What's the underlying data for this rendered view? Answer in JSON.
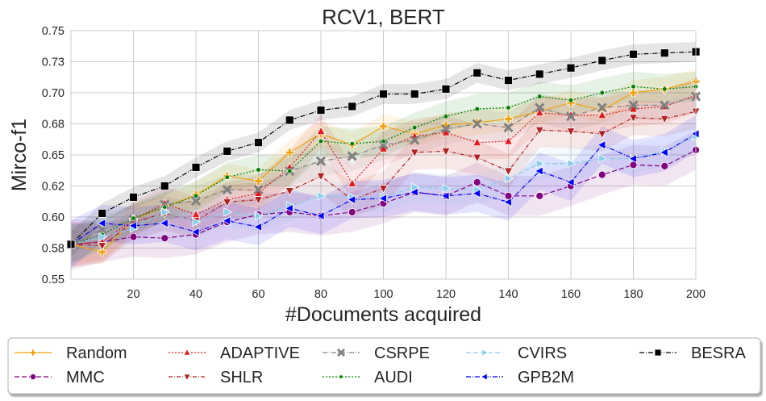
{
  "chart_data": {
    "type": "line",
    "title": "RCV1, BERT",
    "xlabel": "#Documents acquired",
    "ylabel": "Mirco-f1",
    "xlim": [
      0,
      200
    ],
    "ylim": [
      0.55,
      0.75
    ],
    "xticks": [
      20,
      40,
      60,
      80,
      100,
      120,
      140,
      160,
      180,
      200
    ],
    "yticks": [
      0.55,
      0.575,
      0.6,
      0.625,
      0.65,
      0.675,
      0.7,
      0.725,
      0.75
    ],
    "ytick_labels": [
      "0.55",
      "0.58",
      "0.60",
      "0.62",
      "0.65",
      "0.68",
      "0.70",
      "0.73",
      "0.75"
    ],
    "grid": true,
    "legend_position": "bottom, below plot",
    "x": [
      0,
      10,
      20,
      30,
      40,
      50,
      60,
      70,
      80,
      90,
      100,
      110,
      120,
      130,
      140,
      150,
      160,
      170,
      180,
      190,
      200
    ],
    "series": [
      {
        "name": "Random",
        "color": "#f2a10c",
        "dash": "",
        "marker": "plus",
        "band": 0.01,
        "values": [
          0.578,
          0.572,
          0.598,
          0.608,
          0.618,
          0.633,
          0.629,
          0.652,
          0.667,
          0.658,
          0.673,
          0.667,
          0.674,
          0.676,
          0.679,
          0.685,
          0.692,
          0.686,
          0.7,
          0.703,
          0.709
        ]
      },
      {
        "name": "MMC",
        "color": "#800080",
        "dash": "6,3",
        "marker": "circle",
        "band": 0.016,
        "values": [
          0.578,
          0.58,
          0.584,
          0.583,
          0.586,
          0.596,
          0.602,
          0.604,
          0.601,
          0.604,
          0.611,
          0.62,
          0.617,
          0.628,
          0.617,
          0.617,
          0.625,
          0.634,
          0.642,
          0.641,
          0.654
        ]
      },
      {
        "name": "ADAPTIVE",
        "color": "#e41a1c",
        "dash": "2,2",
        "marker": "triangle-up",
        "band": 0.014,
        "values": [
          0.578,
          0.58,
          0.598,
          0.611,
          0.602,
          0.614,
          0.619,
          0.64,
          0.669,
          0.627,
          0.655,
          0.665,
          0.668,
          0.66,
          0.661,
          0.684,
          0.682,
          0.682,
          0.687,
          0.689,
          0.698
        ]
      },
      {
        "name": "SHLR",
        "color": "#b22222",
        "dash": "5,2,1,2",
        "marker": "triangle-down",
        "band": 0.014,
        "values": [
          0.578,
          0.577,
          0.596,
          0.603,
          0.597,
          0.612,
          0.614,
          0.621,
          0.633,
          0.614,
          0.623,
          0.652,
          0.653,
          0.648,
          0.637,
          0.67,
          0.669,
          0.667,
          0.68,
          0.679,
          0.685
        ]
      },
      {
        "name": "CSRPE",
        "color": "#808080",
        "dash": "6,2,1,2",
        "marker": "x",
        "band": 0.012,
        "values": [
          0.578,
          0.59,
          0.598,
          0.61,
          0.613,
          0.622,
          0.622,
          0.637,
          0.645,
          0.649,
          0.658,
          0.662,
          0.671,
          0.675,
          0.672,
          0.688,
          0.681,
          0.688,
          0.69,
          0.69,
          0.697
        ]
      },
      {
        "name": "AUDI",
        "color": "#008000",
        "dash": "2,2",
        "marker": "dot",
        "band": 0.012,
        "values": [
          0.578,
          0.586,
          0.599,
          0.608,
          0.617,
          0.632,
          0.638,
          0.637,
          0.661,
          0.659,
          0.661,
          0.672,
          0.681,
          0.687,
          0.688,
          0.697,
          0.694,
          0.7,
          0.705,
          0.703,
          0.705
        ]
      },
      {
        "name": "CVIRS",
        "color": "#87ceeb",
        "dash": "6,3",
        "marker": "triangle-right",
        "band": 0.012,
        "values": [
          0.578,
          0.584,
          0.591,
          0.604,
          0.596,
          0.604,
          0.601,
          0.609,
          0.617,
          0.616,
          0.616,
          0.624,
          0.623,
          0.622,
          0.631,
          0.643,
          0.643,
          0.647,
          0.647,
          0.653,
          0.665
        ]
      },
      {
        "name": "GPB2M",
        "color": "#0000ff",
        "dash": "6,2,1,2",
        "marker": "triangle-left",
        "band": 0.015,
        "values": [
          0.578,
          0.595,
          0.593,
          0.595,
          0.588,
          0.597,
          0.592,
          0.607,
          0.601,
          0.614,
          0.615,
          0.62,
          0.617,
          0.619,
          0.612,
          0.637,
          0.628,
          0.658,
          0.647,
          0.652,
          0.667
        ]
      },
      {
        "name": "BESRA",
        "color": "#000000",
        "dash": "6,2,1,2",
        "marker": "square",
        "band": 0.008,
        "values": [
          0.578,
          0.603,
          0.616,
          0.625,
          0.64,
          0.653,
          0.66,
          0.678,
          0.686,
          0.689,
          0.699,
          0.699,
          0.703,
          0.716,
          0.71,
          0.715,
          0.72,
          0.726,
          0.731,
          0.732,
          0.733
        ]
      }
    ]
  }
}
